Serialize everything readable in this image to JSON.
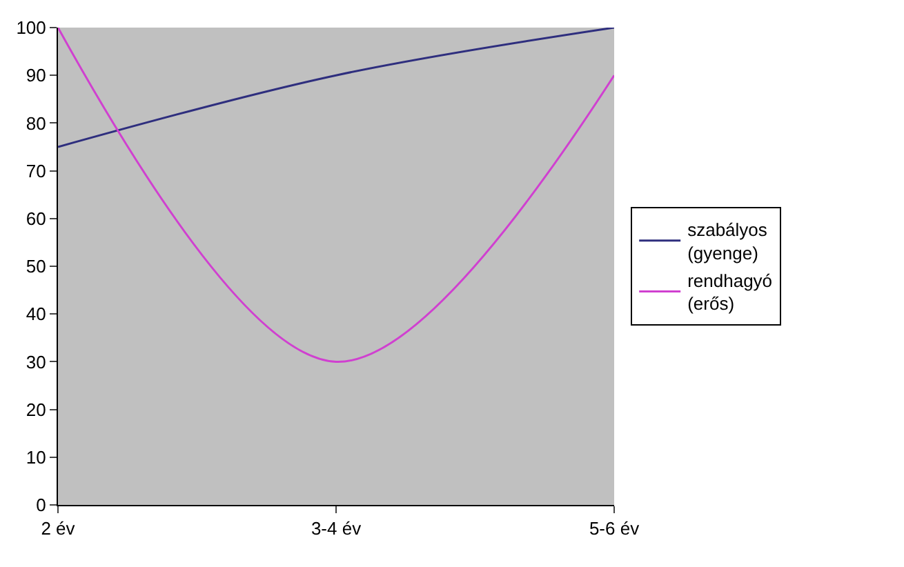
{
  "chart_data": {
    "type": "line",
    "categories": [
      "2 év",
      "3-4 év",
      "5-6 év"
    ],
    "series": [
      {
        "name": "szabályos\n(gyenge)",
        "color": "#2e2e7e",
        "values": [
          75,
          90,
          100
        ]
      },
      {
        "name": "rendhagyó\n(erős)",
        "color": "#d040d0",
        "values": [
          100,
          30,
          90
        ]
      }
    ],
    "ylim": [
      0,
      100
    ],
    "yticks": [
      0,
      10,
      20,
      30,
      40,
      50,
      60,
      70,
      80,
      90,
      100
    ],
    "grid": false,
    "legend": "right",
    "marker": "none",
    "line_style": "solid"
  }
}
